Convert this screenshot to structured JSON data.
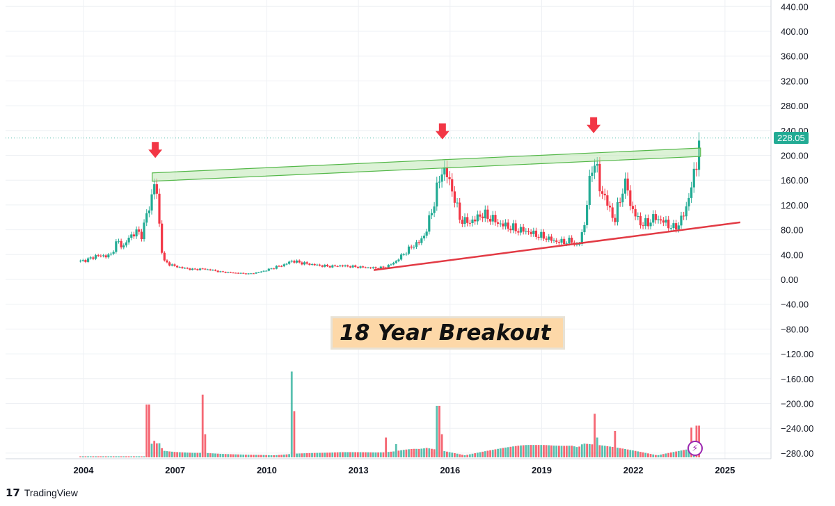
{
  "chart_data": {
    "type": "candlestick",
    "ylim": [
      -290,
      440
    ],
    "yticks": [
      "440.00",
      "400.00",
      "360.00",
      "320.00",
      "280.00",
      "240.00",
      "200.00",
      "160.00",
      "120.00",
      "80.00",
      "40.00",
      "0.00",
      "−40.00",
      "−80.00",
      "−120.00",
      "−160.00",
      "−200.00",
      "−240.00",
      "−280.00"
    ],
    "xticks": [
      "2004",
      "2007",
      "2010",
      "2013",
      "2016",
      "2019",
      "2022",
      "2025"
    ],
    "grid": true,
    "last_price": "228.05",
    "up_color": "#22ab94",
    "down_color": "#f23645",
    "price_path": [
      [
        2003.9,
        29
      ],
      [
        2004.2,
        33
      ],
      [
        2004.4,
        38
      ],
      [
        2004.8,
        38
      ],
      [
        2004.9,
        40
      ],
      [
        2005.1,
        62
      ],
      [
        2005.3,
        52
      ],
      [
        2005.5,
        68
      ],
      [
        2005.7,
        77
      ],
      [
        2005.9,
        72
      ],
      [
        2006.0,
        90
      ],
      [
        2006.1,
        110
      ],
      [
        2006.2,
        125
      ],
      [
        2006.35,
        165
      ],
      [
        2006.45,
        105
      ],
      [
        2006.5,
        80
      ],
      [
        2006.6,
        30
      ],
      [
        2006.8,
        25
      ],
      [
        2007.0,
        21
      ],
      [
        2007.3,
        18
      ],
      [
        2007.6,
        16
      ],
      [
        2007.9,
        17
      ],
      [
        2008.2,
        15
      ],
      [
        2008.5,
        12
      ],
      [
        2008.8,
        11
      ],
      [
        2009.1,
        10
      ],
      [
        2009.4,
        9
      ],
      [
        2009.7,
        11
      ],
      [
        2010.0,
        15
      ],
      [
        2010.3,
        20
      ],
      [
        2010.6,
        24
      ],
      [
        2010.8,
        30
      ],
      [
        2011.0,
        28
      ],
      [
        2011.2,
        26
      ],
      [
        2011.5,
        24
      ],
      [
        2011.8,
        22
      ],
      [
        2012.1,
        21
      ],
      [
        2012.4,
        22
      ],
      [
        2012.7,
        21
      ],
      [
        2013.0,
        20
      ],
      [
        2013.3,
        19
      ],
      [
        2013.6,
        18
      ],
      [
        2013.9,
        20
      ],
      [
        2014.2,
        28
      ],
      [
        2014.5,
        42
      ],
      [
        2014.8,
        55
      ],
      [
        2015.0,
        60
      ],
      [
        2015.2,
        75
      ],
      [
        2015.4,
        110
      ],
      [
        2015.6,
        150
      ],
      [
        2015.75,
        180
      ],
      [
        2015.9,
        168
      ],
      [
        2016.1,
        140
      ],
      [
        2016.3,
        100
      ],
      [
        2016.5,
        92
      ],
      [
        2016.8,
        95
      ],
      [
        2017.0,
        105
      ],
      [
        2017.3,
        100
      ],
      [
        2017.6,
        90
      ],
      [
        2017.9,
        85
      ],
      [
        2018.2,
        80
      ],
      [
        2018.5,
        78
      ],
      [
        2018.8,
        72
      ],
      [
        2019.1,
        68
      ],
      [
        2019.4,
        62
      ],
      [
        2019.7,
        60
      ],
      [
        2020.0,
        62
      ],
      [
        2020.2,
        52
      ],
      [
        2020.4,
        90
      ],
      [
        2020.5,
        130
      ],
      [
        2020.6,
        165
      ],
      [
        2020.7,
        200
      ],
      [
        2020.8,
        175
      ],
      [
        2020.9,
        148
      ],
      [
        2021.0,
        140
      ],
      [
        2021.2,
        115
      ],
      [
        2021.4,
        95
      ],
      [
        2021.6,
        140
      ],
      [
        2021.8,
        155
      ],
      [
        2021.9,
        120
      ],
      [
        2022.1,
        100
      ],
      [
        2022.3,
        88
      ],
      [
        2022.5,
        92
      ],
      [
        2022.7,
        100
      ],
      [
        2022.9,
        95
      ],
      [
        2023.1,
        90
      ],
      [
        2023.3,
        82
      ],
      [
        2023.5,
        90
      ],
      [
        2023.7,
        110
      ],
      [
        2023.8,
        130
      ],
      [
        2023.9,
        150
      ],
      [
        2024.0,
        170
      ],
      [
        2024.1,
        200
      ],
      [
        2024.15,
        228
      ]
    ],
    "volume_path": [
      [
        2006.1,
        80
      ],
      [
        2006.3,
        25
      ],
      [
        2007.9,
        95
      ],
      [
        2008.0,
        35
      ],
      [
        2010.8,
        130
      ],
      [
        2010.9,
        70
      ],
      [
        2013.9,
        30
      ],
      [
        2014.2,
        20
      ],
      [
        2015.6,
        78
      ],
      [
        2015.7,
        35
      ],
      [
        2020.7,
        66
      ],
      [
        2020.8,
        30
      ],
      [
        2021.4,
        40
      ],
      [
        2023.9,
        45
      ],
      [
        2024.1,
        48
      ]
    ],
    "resistance_line": {
      "start": [
        2006.25,
        165
      ],
      "end": [
        2024.2,
        205
      ]
    },
    "support_line": {
      "start": [
        2013.5,
        15
      ],
      "end": [
        2025.5,
        92
      ]
    },
    "peak_markers": [
      [
        2006.35,
        170
      ],
      [
        2015.75,
        200
      ],
      [
        2020.7,
        210
      ]
    ]
  },
  "annotation": "18 Year Breakout",
  "footer": {
    "logo": "17",
    "brand": "TradingView"
  },
  "lightning_icon": "lightning-icon"
}
